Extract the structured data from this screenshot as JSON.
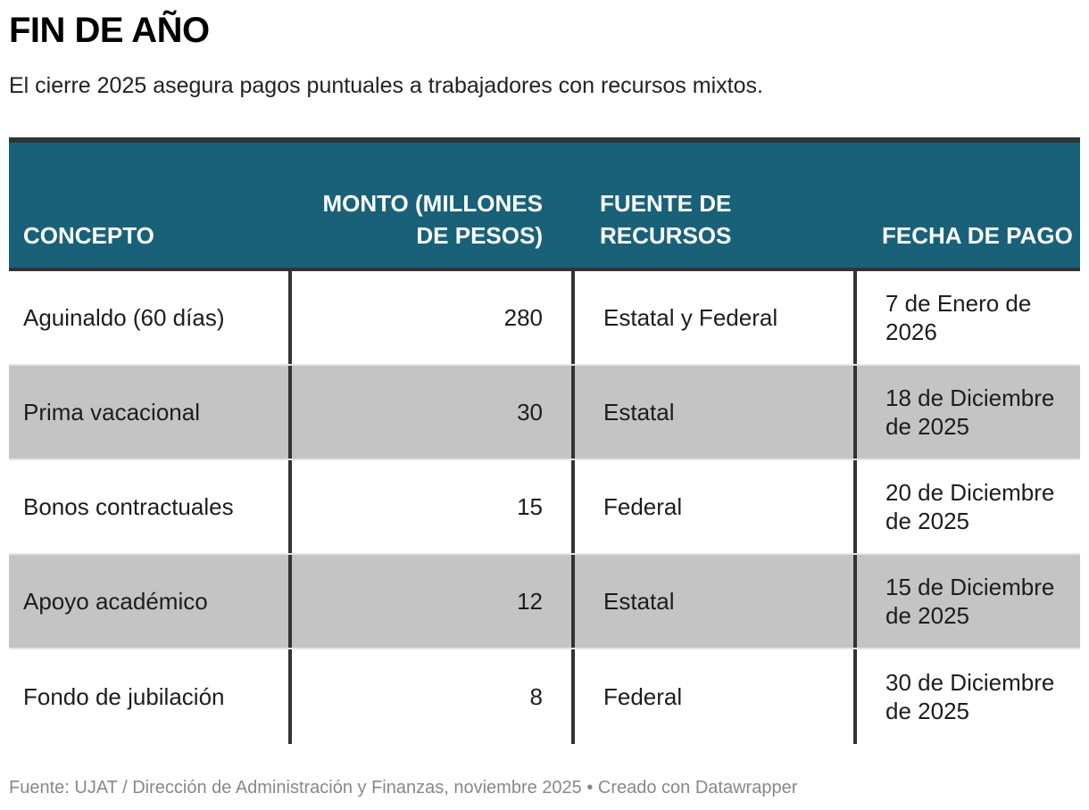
{
  "title": "FIN DE AÑO",
  "subtitle": "El cierre 2025 asegura pagos puntuales a trabajadores con recursos mixtos.",
  "colors": {
    "header_bg": "#186179",
    "rule": "#333333",
    "alt_row": "#c4c4c4"
  },
  "table": {
    "headers": [
      "CONCEPTO",
      "MONTO (MILLONES DE PESOS)",
      "FUENTE DE RECURSOS",
      "FECHA DE PAGO"
    ],
    "rows": [
      {
        "concepto": "Aguinaldo (60 días)",
        "monto": "280",
        "fuente": "Estatal y Federal",
        "fecha": "7 de Enero de 2026"
      },
      {
        "concepto": "Prima vacacional",
        "monto": "30",
        "fuente": "Estatal",
        "fecha": "18 de Diciembre de 2025"
      },
      {
        "concepto": "Bonos contractuales",
        "monto": "15",
        "fuente": "Federal",
        "fecha": "20 de Diciembre de 2025"
      },
      {
        "concepto": "Apoyo académico",
        "monto": "12",
        "fuente": "Estatal",
        "fecha": "15 de Diciembre de 2025"
      },
      {
        "concepto": "Fondo de jubilación",
        "monto": "8",
        "fuente": "Federal",
        "fecha": "30 de Diciembre de 2025"
      }
    ]
  },
  "footer": "Fuente: UJAT / Dirección de Administración y Finanzas, noviembre 2025 • Creado con Datawrapper",
  "chart_data": {
    "type": "table",
    "title": "FIN DE AÑO",
    "subtitle": "El cierre 2025 asegura pagos puntuales a trabajadores con recursos mixtos.",
    "columns": [
      "CONCEPTO",
      "MONTO (MILLONES DE PESOS)",
      "FUENTE DE RECURSOS",
      "FECHA DE PAGO"
    ],
    "rows": [
      [
        "Aguinaldo (60 días)",
        280,
        "Estatal y Federal",
        "7 de Enero de 2026"
      ],
      [
        "Prima vacacional",
        30,
        "Estatal",
        "18 de Diciembre de 2025"
      ],
      [
        "Bonos contractuales",
        15,
        "Federal",
        "20 de Diciembre de 2025"
      ],
      [
        "Apoyo académico",
        12,
        "Estatal",
        "15 de Diciembre de 2025"
      ],
      [
        "Fondo de jubilación",
        8,
        "Federal",
        "30 de Diciembre de 2025"
      ]
    ],
    "source": "Fuente: UJAT / Dirección de Administración y Finanzas, noviembre 2025 • Creado con Datawrapper"
  }
}
